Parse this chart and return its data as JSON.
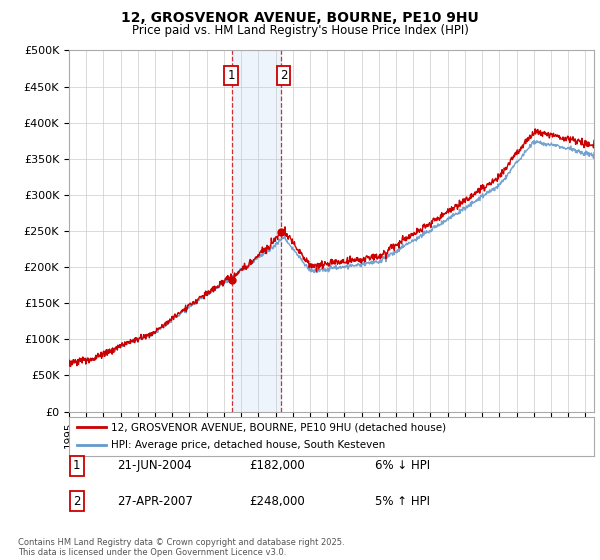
{
  "title": "12, GROSVENOR AVENUE, BOURNE, PE10 9HU",
  "subtitle": "Price paid vs. HM Land Registry's House Price Index (HPI)",
  "ylabel_ticks": [
    "£0",
    "£50K",
    "£100K",
    "£150K",
    "£200K",
    "£250K",
    "£300K",
    "£350K",
    "£400K",
    "£450K",
    "£500K"
  ],
  "ytick_values": [
    0,
    50000,
    100000,
    150000,
    200000,
    250000,
    300000,
    350000,
    400000,
    450000,
    500000
  ],
  "ylim": [
    0,
    500000
  ],
  "xlim_start": 1995.0,
  "xlim_end": 2025.5,
  "hpi_color": "#6699cc",
  "price_color": "#cc0000",
  "transaction1_date": 2004.47,
  "transaction1_price": 182000,
  "transaction2_date": 2007.32,
  "transaction2_price": 248000,
  "shade_color": "#ddeeff",
  "vline_color": "#cc0000",
  "legend_line1": "12, GROSVENOR AVENUE, BOURNE, PE10 9HU (detached house)",
  "legend_line2": "HPI: Average price, detached house, South Kesteven",
  "table_rows": [
    {
      "num": "1",
      "date": "21-JUN-2004",
      "price": "£182,000",
      "pct": "6% ↓ HPI"
    },
    {
      "num": "2",
      "date": "27-APR-2007",
      "price": "£248,000",
      "pct": "5% ↑ HPI"
    }
  ],
  "footnote": "Contains HM Land Registry data © Crown copyright and database right 2025.\nThis data is licensed under the Open Government Licence v3.0.",
  "background_color": "#ffffff",
  "plot_bg_color": "#ffffff",
  "grid_color": "#cccccc"
}
